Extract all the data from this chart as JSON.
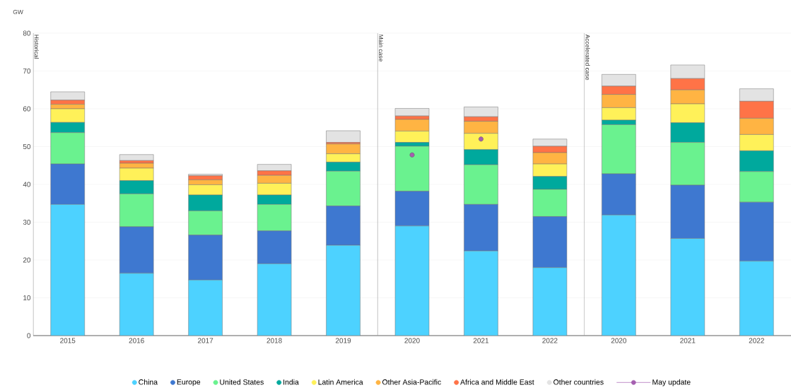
{
  "chart_data": {
    "type": "bar",
    "stacked": true,
    "ylabel": "GW",
    "categories": [
      "2015",
      "2016",
      "2017",
      "2018",
      "2019",
      "2020",
      "2021",
      "2022",
      "2020",
      "2021",
      "2022"
    ],
    "series": [
      {
        "name": "China",
        "color": "#4dd2ff",
        "values": [
          34.7,
          16.5,
          14.7,
          19.0,
          23.9,
          29.0,
          22.4,
          18.0,
          31.9,
          25.7,
          19.7
        ]
      },
      {
        "name": "Europe",
        "color": "#3e78d0",
        "values": [
          10.7,
          12.3,
          11.9,
          8.7,
          10.4,
          9.2,
          12.3,
          13.5,
          10.9,
          14.1,
          15.6
        ]
      },
      {
        "name": "United States",
        "color": "#6af28f",
        "values": [
          8.3,
          8.7,
          6.4,
          7.0,
          9.2,
          11.9,
          10.5,
          7.2,
          13.0,
          11.3,
          8.1
        ]
      },
      {
        "name": "India",
        "color": "#00a99d",
        "values": [
          2.7,
          3.5,
          4.2,
          2.5,
          2.4,
          1.0,
          4.0,
          3.4,
          1.2,
          5.2,
          5.5
        ]
      },
      {
        "name": "Latin America",
        "color": "#fff159",
        "values": [
          3.6,
          3.3,
          2.7,
          3.1,
          2.2,
          3.0,
          4.3,
          3.3,
          3.3,
          5.0,
          4.3
        ]
      },
      {
        "name": "Other Asia-Pacific",
        "color": "#ffb443",
        "values": [
          1.2,
          1.3,
          1.3,
          2.1,
          2.6,
          3.1,
          3.2,
          3.0,
          3.5,
          3.7,
          4.3
        ]
      },
      {
        "name": "Africa and Middle East",
        "color": "#ff7347",
        "values": [
          1.1,
          0.7,
          1.1,
          1.2,
          0.4,
          0.9,
          1.2,
          1.7,
          2.2,
          3.0,
          4.5
        ]
      },
      {
        "name": "Other countries",
        "color": "#e3e3e3",
        "values": [
          2.2,
          1.6,
          0.4,
          1.7,
          3.1,
          2.0,
          2.6,
          1.9,
          3.1,
          3.6,
          3.3
        ]
      },
      {
        "name": "May update",
        "color": "#a55fb0",
        "type": "scatter",
        "marker": "circle",
        "values": [
          null,
          null,
          null,
          null,
          null,
          47.8,
          52.0,
          null,
          null,
          null,
          null
        ]
      }
    ],
    "ylim": [
      0,
      80
    ],
    "yticks": [
      0,
      10,
      20,
      30,
      40,
      50,
      60,
      70,
      80
    ],
    "grid": "y",
    "legend": "bottom",
    "annotations": [
      "Historical",
      "Main case",
      "Accelerated case"
    ]
  }
}
